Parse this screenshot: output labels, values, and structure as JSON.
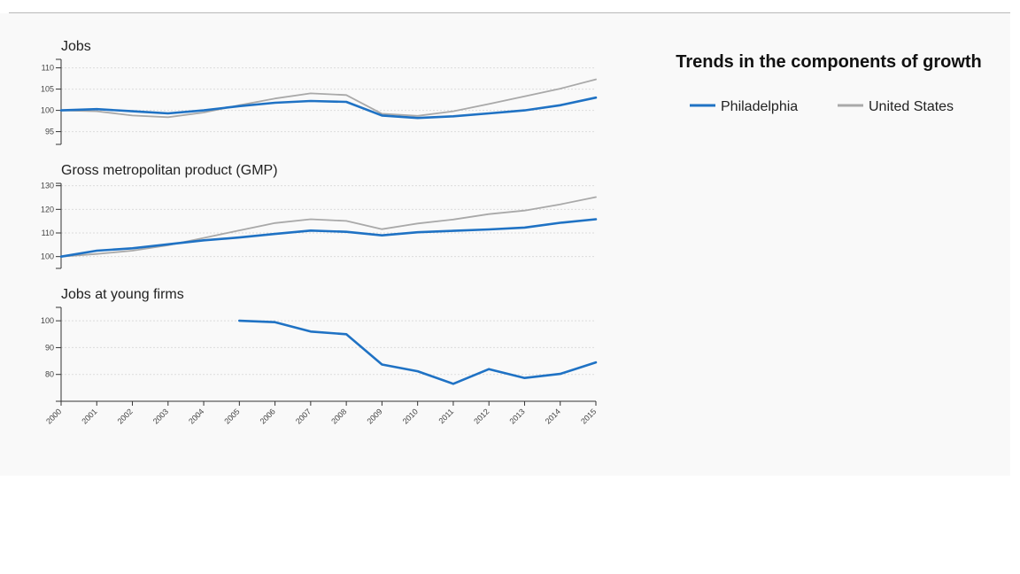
{
  "title": "Trends in the components of growth",
  "colors": {
    "philadelphia": "#1f72c4",
    "united_states": "#a9a9a9"
  },
  "legend": [
    {
      "name": "Philadelphia",
      "color": "#1f72c4"
    },
    {
      "name": "United States",
      "color": "#a9a9a9"
    }
  ],
  "chart_data": [
    {
      "type": "line",
      "title": "Jobs",
      "x": [
        2000,
        2001,
        2002,
        2003,
        2004,
        2005,
        2006,
        2007,
        2008,
        2009,
        2010,
        2011,
        2012,
        2013,
        2014,
        2015
      ],
      "ylim": [
        92,
        112
      ],
      "yticks": [
        95,
        100,
        105,
        110
      ],
      "grid": true,
      "series": [
        {
          "name": "Philadelphia",
          "values": [
            100,
            100.3,
            99.8,
            99.3,
            100,
            101,
            101.8,
            102.2,
            102,
            98.8,
            98.2,
            98.6,
            99.3,
            100,
            101.2,
            103
          ]
        },
        {
          "name": "United States",
          "values": [
            100,
            99.8,
            98.8,
            98.4,
            99.5,
            101.2,
            102.8,
            104,
            103.6,
            99.2,
            98.7,
            99.8,
            101.5,
            103.3,
            105.1,
            107.3
          ]
        }
      ]
    },
    {
      "type": "line",
      "title": "Gross metropolitan product (GMP)",
      "x": [
        2000,
        2001,
        2002,
        2003,
        2004,
        2005,
        2006,
        2007,
        2008,
        2009,
        2010,
        2011,
        2012,
        2013,
        2014,
        2015
      ],
      "ylim": [
        95,
        131
      ],
      "yticks": [
        100,
        110,
        120,
        130
      ],
      "grid": true,
      "series": [
        {
          "name": "Philadelphia",
          "values": [
            100,
            102.5,
            103.5,
            105.2,
            106.9,
            108.1,
            109.6,
            111,
            110.5,
            109,
            110.3,
            110.9,
            111.5,
            112.3,
            114.3,
            115.8
          ]
        },
        {
          "name": "United States",
          "values": [
            100,
            101.1,
            102.5,
            104.8,
            107.9,
            111.1,
            114.2,
            115.8,
            115.1,
            111.6,
            114,
            115.7,
            118,
            119.5,
            122.1,
            125.2
          ]
        }
      ]
    },
    {
      "type": "line",
      "title": "Jobs at young firms",
      "x": [
        2000,
        2001,
        2002,
        2003,
        2004,
        2005,
        2006,
        2007,
        2008,
        2009,
        2010,
        2011,
        2012,
        2013,
        2014,
        2015
      ],
      "xticks": [
        "2000",
        "2001",
        "2002",
        "2003",
        "2004",
        "2005",
        "2006",
        "2007",
        "2008",
        "2009",
        "2010",
        "2011",
        "2012",
        "2013",
        "2014",
        "2015"
      ],
      "ylim": [
        70,
        105
      ],
      "yticks": [
        80,
        90,
        100
      ],
      "grid": true,
      "series": [
        {
          "name": "Philadelphia",
          "values": [
            null,
            null,
            null,
            null,
            null,
            100,
            99.5,
            96,
            95,
            83.7,
            81.2,
            76.5,
            82,
            78.7,
            80.2,
            84.5
          ]
        }
      ]
    }
  ]
}
